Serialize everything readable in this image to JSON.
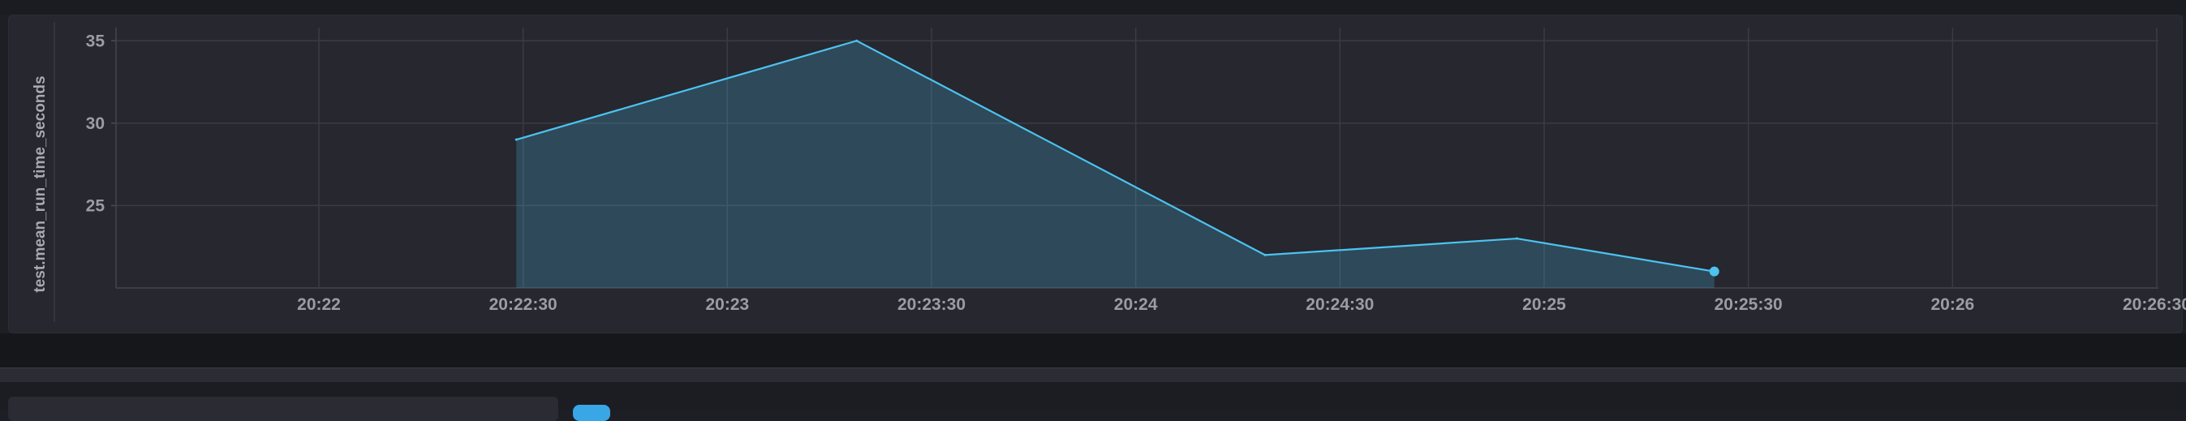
{
  "chart_data": {
    "type": "area",
    "ylabel": "test.mean_run_time_seconds",
    "x_ticks": [
      "20:22",
      "20:22:30",
      "20:23",
      "20:23:30",
      "20:24",
      "20:24:30",
      "20:25",
      "20:25:30",
      "20:26",
      "20:26:30"
    ],
    "y_ticks": [
      "35",
      "30",
      "25"
    ],
    "series": [
      {
        "color": "#4cc3f0",
        "x": [
          "20:22:29",
          "20:23:19",
          "20:24:19",
          "20:24:56",
          "20:25:25"
        ],
        "values": [
          29,
          35,
          22,
          23,
          21
        ]
      }
    ],
    "ylim": [
      20,
      35.8
    ],
    "grid": true,
    "legend": false
  }
}
